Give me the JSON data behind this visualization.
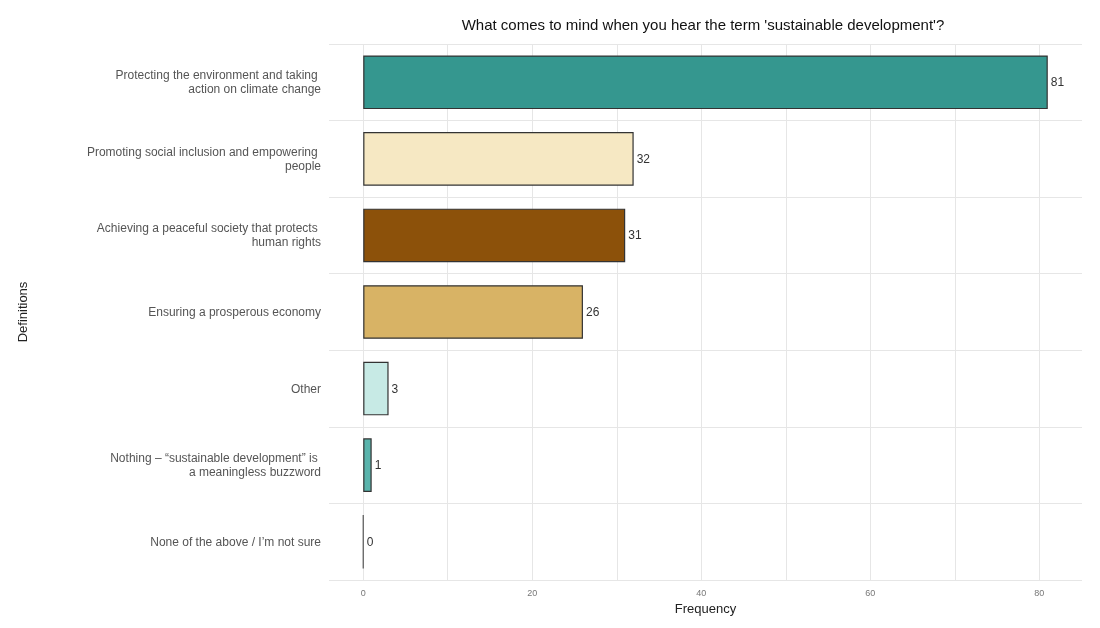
{
  "chart_data": {
    "type": "bar",
    "orientation": "horizontal",
    "title": "What comes to mind when you hear the term 'sustainable development'?",
    "xlabel": "Frequency",
    "ylabel": "Definitions",
    "categories": [
      "Protecting the environment and taking action on climate change",
      "Promoting social inclusion and empowering people",
      "Achieving a peaceful society that protects human rights",
      "Ensuring a prosperous economy",
      "Other",
      "Nothing – “sustainable development” is a meaningless buzzword",
      "None of the above / I’m not sure"
    ],
    "values": [
      81,
      32,
      31,
      26,
      3,
      1,
      0
    ],
    "colors": [
      "#35978f",
      "#f6e8c3",
      "#8c510a",
      "#d8b365",
      "#c7eae5",
      "#5ab4ac",
      "#555555"
    ],
    "xlim": [
      -4.05,
      85.05
    ],
    "xticks": [
      0,
      {
        "value": 10,
        "label": null
      },
      20,
      {
        "value": 30,
        "label": null
      },
      40,
      {
        "value": 50,
        "label": null
      },
      60,
      {
        "value": 70,
        "label": null
      },
      80
    ],
    "grid": true,
    "data_labels": true
  }
}
